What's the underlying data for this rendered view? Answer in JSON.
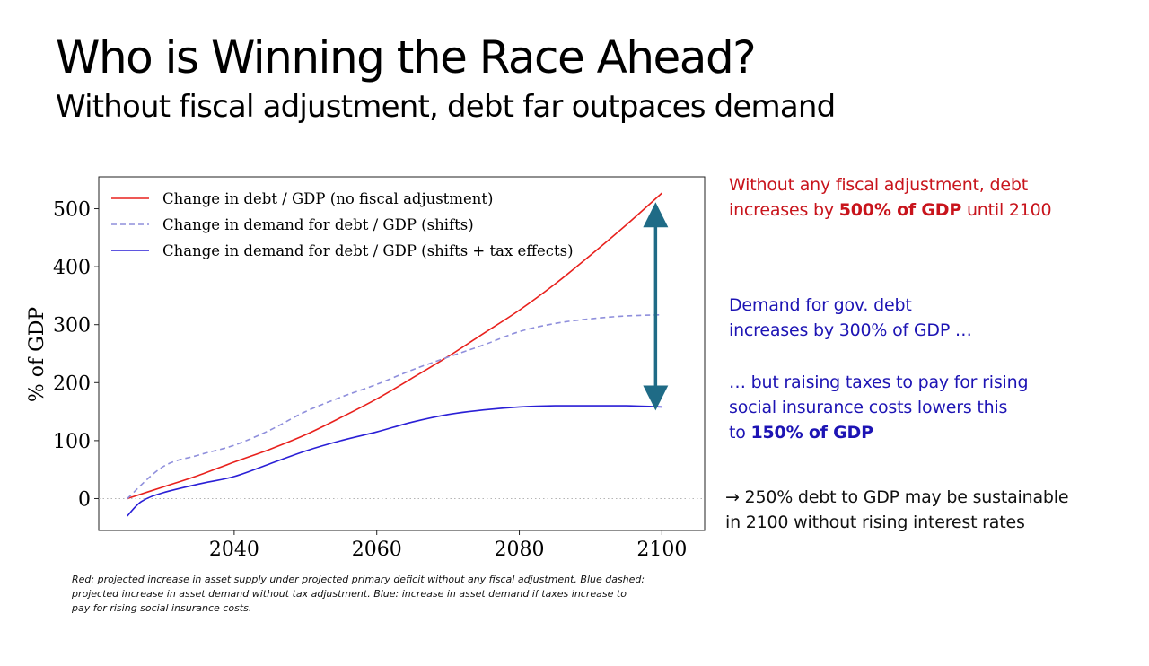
{
  "slide": {
    "title": "Who is Winning the Race Ahead?",
    "subtitle": "Without fiscal adjustment, debt far outpaces demand"
  },
  "chart_data": {
    "type": "line",
    "ylabel": "% of GDP",
    "xlabel": "",
    "xlim": [
      2021,
      2106
    ],
    "ylim": [
      -55,
      555
    ],
    "x_ticks": [
      2040,
      2060,
      2080,
      2100
    ],
    "y_ticks": [
      0,
      100,
      200,
      300,
      400,
      500
    ],
    "legend_position": "top-left",
    "zero_reference_line": true,
    "series": [
      {
        "name": "Change in debt / GDP (no fiscal adjustment)",
        "color": "#e8211d",
        "style": "solid",
        "x": [
          2025,
          2030,
          2035,
          2040,
          2045,
          2050,
          2055,
          2060,
          2065,
          2070,
          2075,
          2080,
          2085,
          2090,
          2095,
          2100
        ],
        "y": [
          0,
          20,
          40,
          63,
          85,
          110,
          140,
          172,
          208,
          245,
          285,
          325,
          370,
          420,
          472,
          527
        ]
      },
      {
        "name": "Change in demand for debt / GDP (shifts)",
        "color": "#8f8fdc",
        "style": "dashed",
        "x": [
          2025,
          2030,
          2035,
          2040,
          2045,
          2050,
          2055,
          2060,
          2065,
          2070,
          2075,
          2080,
          2085,
          2090,
          2095,
          2100
        ],
        "y": [
          0,
          55,
          75,
          92,
          118,
          150,
          175,
          197,
          222,
          244,
          265,
          288,
          302,
          310,
          315,
          317
        ]
      },
      {
        "name": "Change in demand for debt / GDP (shifts + tax effects)",
        "color": "#2a1fd6",
        "style": "solid",
        "x": [
          2025,
          2027,
          2030,
          2035,
          2040,
          2045,
          2050,
          2055,
          2060,
          2065,
          2070,
          2075,
          2080,
          2085,
          2090,
          2095,
          2100
        ],
        "y": [
          -30,
          -5,
          10,
          25,
          38,
          60,
          82,
          100,
          115,
          132,
          145,
          153,
          158,
          160,
          160,
          160,
          158
        ]
      }
    ],
    "annotation_arrow": {
      "x": 2100,
      "y_from": 158,
      "y_to": 505,
      "color": "#1f6b86"
    }
  },
  "notes": {
    "n1_pre": "Without any fiscal adjustment, debt",
    "n1_line2_pre": "increases by ",
    "n1_bold": "500% of GDP",
    "n1_post": " until 2100",
    "n2_l1": "Demand for gov. debt",
    "n2_l2": "increases by 300% of GDP …",
    "n3_l1": "… but raising taxes to pay for rising",
    "n3_l2": "social insurance costs lowers this",
    "n3_pre": "to ",
    "n3_bold": "150% of GDP",
    "n4_l1": "→ 250% debt to GDP may be sustainable",
    "n4_l2": "in 2100 without rising interest rates",
    "colors": {
      "red": "#c8141c",
      "blue": "#1d14b4",
      "black": "#111111"
    }
  },
  "footnote": "Red: projected increase in asset supply under projected primary deficit without any fiscal adjustment. Blue dashed: projected increase in asset demand without tax adjustment. Blue: increase in asset demand if taxes increase to pay for rising social insurance costs."
}
